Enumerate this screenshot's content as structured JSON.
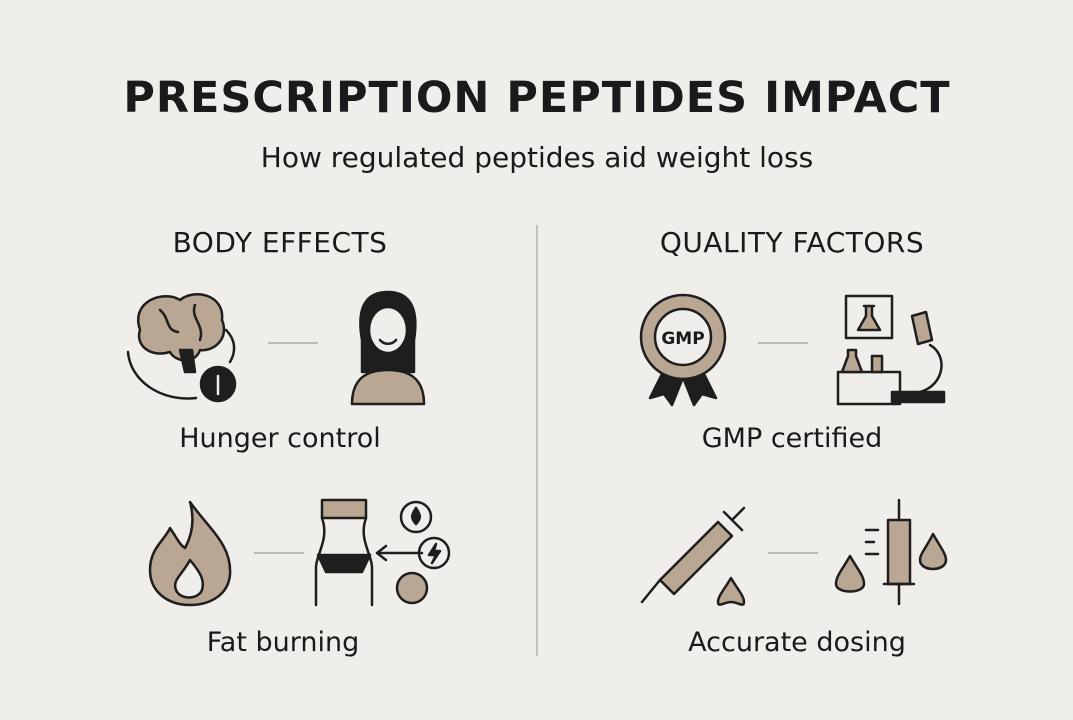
{
  "title": "PRESCRIPTION PEPTIDES IMPACT",
  "subtitle": "How regulated peptides aid weight loss",
  "sections": [
    {
      "heading": "BODY EFFECTS",
      "items": [
        {
          "label": "Hunger control"
        },
        {
          "label": "Fat burning"
        }
      ]
    },
    {
      "heading": "QUALITY FACTORS",
      "items": [
        {
          "label": "GMP certified",
          "badge": "GMP"
        },
        {
          "label": "Accurate dosing"
        }
      ]
    }
  ]
}
